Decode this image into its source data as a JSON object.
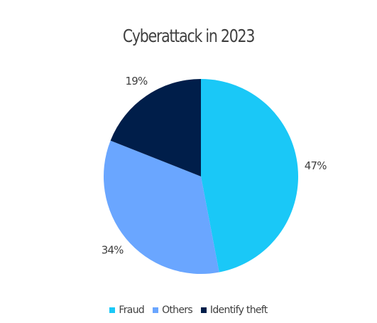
{
  "chart_data": {
    "type": "pie",
    "title": "Cyberattack in 2023",
    "categories": [
      "Fraud",
      "Others",
      "Identify theft"
    ],
    "values": [
      47,
      34,
      19
    ],
    "labels": [
      "47%",
      "34%",
      "19%"
    ],
    "colors": [
      "#1ac8f7",
      "#6aa6ff",
      "#001e4a"
    ],
    "start_angle_deg": 0,
    "direction": "clockwise",
    "legend_position": "bottom"
  }
}
